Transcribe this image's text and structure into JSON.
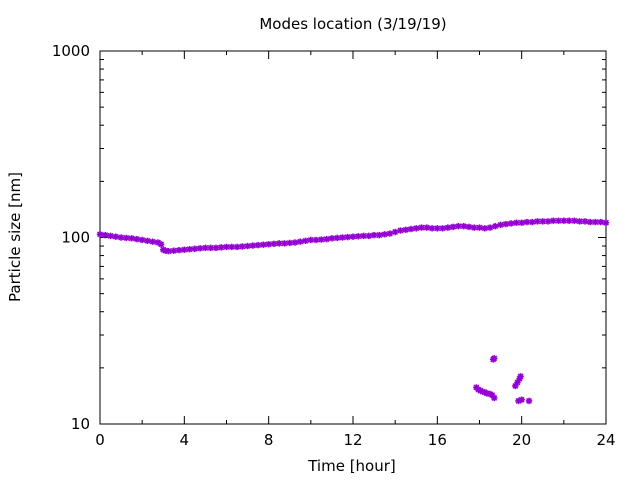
{
  "chart_data": {
    "type": "scatter",
    "title": "Modes location (3/19/19)",
    "xlabel": "Time [hour]",
    "ylabel": "Particle size [nm]",
    "xlim": [
      0,
      24
    ],
    "ylim": [
      10,
      1000
    ],
    "yscale": "log",
    "xticks": [
      0,
      4,
      8,
      12,
      16,
      20,
      24
    ],
    "yticks": [
      10,
      100,
      1000
    ],
    "xtick_labels": [
      "0",
      "4",
      "8",
      "12",
      "16",
      "20",
      "24"
    ],
    "ytick_labels": [
      "10",
      "100",
      "1000"
    ],
    "grid": false,
    "marker_color": "#9400d3",
    "series": [
      {
        "points": [
          [
            0.0,
            104
          ],
          [
            0.25,
            103
          ],
          [
            0.5,
            102
          ],
          [
            0.75,
            101
          ],
          [
            1.0,
            100
          ],
          [
            1.25,
            99.5
          ],
          [
            1.5,
            99
          ],
          [
            1.75,
            98
          ],
          [
            2.0,
            97
          ],
          [
            2.25,
            96
          ],
          [
            2.5,
            95
          ],
          [
            2.75,
            94
          ],
          [
            2.9,
            92
          ],
          [
            3.0,
            86
          ],
          [
            3.1,
            85
          ],
          [
            3.25,
            84.5
          ],
          [
            3.5,
            85
          ],
          [
            3.75,
            85.5
          ],
          [
            4.0,
            86
          ],
          [
            4.25,
            86.5
          ],
          [
            4.5,
            87
          ],
          [
            4.75,
            87.5
          ],
          [
            5.0,
            88
          ],
          [
            5.25,
            88
          ],
          [
            5.5,
            88
          ],
          [
            5.75,
            88.5
          ],
          [
            6.0,
            89
          ],
          [
            6.25,
            89
          ],
          [
            6.5,
            89
          ],
          [
            6.75,
            89.5
          ],
          [
            7.0,
            90
          ],
          [
            7.25,
            90.5
          ],
          [
            7.5,
            91
          ],
          [
            7.75,
            91.5
          ],
          [
            8.0,
            92
          ],
          [
            8.25,
            92.5
          ],
          [
            8.5,
            93
          ],
          [
            8.75,
            93
          ],
          [
            9.0,
            93.5
          ],
          [
            9.25,
            94
          ],
          [
            9.5,
            95
          ],
          [
            9.75,
            96
          ],
          [
            10.0,
            97
          ],
          [
            10.25,
            97
          ],
          [
            10.5,
            97.5
          ],
          [
            10.75,
            98
          ],
          [
            11.0,
            99
          ],
          [
            11.25,
            99.5
          ],
          [
            11.5,
            100
          ],
          [
            11.75,
            100.5
          ],
          [
            12.0,
            101
          ],
          [
            12.25,
            101.5
          ],
          [
            12.5,
            102
          ],
          [
            12.75,
            102
          ],
          [
            13.0,
            103
          ],
          [
            13.25,
            103
          ],
          [
            13.5,
            104
          ],
          [
            13.75,
            105
          ],
          [
            14.0,
            107
          ],
          [
            14.25,
            109
          ],
          [
            14.5,
            110
          ],
          [
            14.75,
            111
          ],
          [
            15.0,
            112
          ],
          [
            15.25,
            113
          ],
          [
            15.5,
            113
          ],
          [
            15.75,
            112
          ],
          [
            16.0,
            112
          ],
          [
            16.25,
            112
          ],
          [
            16.5,
            113
          ],
          [
            16.75,
            114
          ],
          [
            17.0,
            115
          ],
          [
            17.25,
            115
          ],
          [
            17.5,
            114
          ],
          [
            17.75,
            113
          ],
          [
            18.0,
            113
          ],
          [
            18.25,
            112
          ],
          [
            18.5,
            113
          ],
          [
            18.75,
            115
          ],
          [
            19.0,
            117
          ],
          [
            19.25,
            118
          ],
          [
            19.5,
            119
          ],
          [
            19.75,
            120
          ],
          [
            20.0,
            120
          ],
          [
            20.25,
            121
          ],
          [
            20.5,
            121
          ],
          [
            20.75,
            122
          ],
          [
            21.0,
            122
          ],
          [
            21.25,
            122
          ],
          [
            21.5,
            123
          ],
          [
            21.75,
            123
          ],
          [
            22.0,
            123
          ],
          [
            22.25,
            123
          ],
          [
            22.5,
            123
          ],
          [
            22.75,
            122
          ],
          [
            23.0,
            122
          ],
          [
            23.25,
            121
          ],
          [
            23.5,
            121
          ],
          [
            23.75,
            121
          ],
          [
            24.0,
            120
          ],
          [
            17.85,
            15.7
          ],
          [
            17.95,
            15.3
          ],
          [
            18.05,
            15.1
          ],
          [
            18.15,
            14.9
          ],
          [
            18.25,
            14.8
          ],
          [
            18.35,
            14.6
          ],
          [
            18.5,
            14.5
          ],
          [
            18.6,
            14.3
          ],
          [
            18.7,
            13.8
          ],
          [
            18.65,
            22.2
          ],
          [
            18.7,
            22.5
          ],
          [
            19.7,
            16.0
          ],
          [
            19.8,
            16.7
          ],
          [
            19.9,
            17.5
          ],
          [
            19.95,
            18.0
          ],
          [
            19.85,
            13.3
          ],
          [
            20.0,
            13.5
          ],
          [
            20.35,
            13.3
          ]
        ]
      }
    ]
  }
}
